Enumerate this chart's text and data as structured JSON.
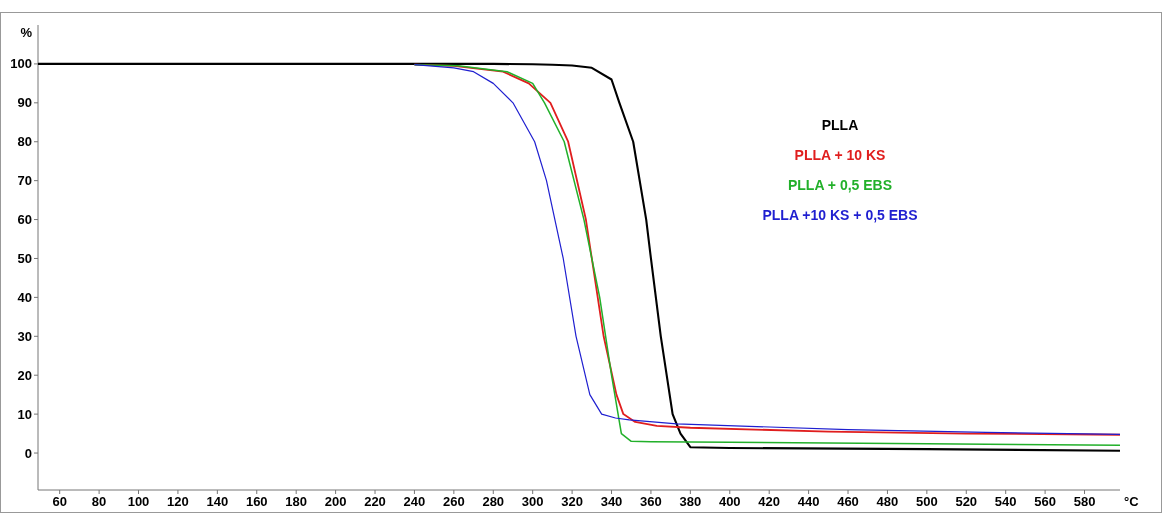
{
  "chart_data": {
    "type": "line",
    "xlabel": "°C",
    "ylabel": "%",
    "xlim": [
      49,
      598
    ],
    "ylim": [
      -9.5,
      110
    ],
    "xticks": [
      60,
      80,
      100,
      120,
      140,
      160,
      180,
      200,
      220,
      240,
      260,
      280,
      300,
      320,
      340,
      360,
      380,
      400,
      420,
      440,
      460,
      480,
      500,
      520,
      540,
      560,
      580
    ],
    "yticks": [
      0,
      10,
      20,
      30,
      40,
      50,
      60,
      70,
      80,
      90,
      100
    ],
    "grid": false,
    "legend": "right",
    "line_style": "solid",
    "marker": "none",
    "series": [
      {
        "name": "PLLA",
        "color": "#000000",
        "x": [
          49,
          200,
          280,
          300,
          310,
          320,
          330,
          340,
          344,
          351,
          357.6,
          360,
          365,
          371,
          375,
          380,
          400,
          500,
          598
        ],
        "values": [
          100,
          100,
          100,
          99.9,
          99.8,
          99.6,
          99,
          96,
          90,
          80,
          60,
          50,
          30,
          10,
          5,
          1.5,
          1.3,
          1,
          0.6
        ]
      },
      {
        "name": "PLLA + 10 KS",
        "color": "#e01e1e",
        "x": [
          240,
          260,
          285,
          298,
          309,
          318,
          327,
          330,
          336,
          342.5,
          346,
          352,
          363,
          380,
          450,
          520,
          598
        ],
        "values": [
          99.8,
          99.5,
          98,
          95,
          90,
          80,
          60,
          50,
          30,
          15,
          10,
          8,
          7,
          6.5,
          5.5,
          5,
          4.7
        ]
      },
      {
        "name": "PLLA + 0,5 EBS",
        "color": "#22b02a",
        "x": [
          240,
          262,
          287,
          300,
          306,
          316,
          326,
          334,
          340,
          345,
          350,
          360,
          400,
          500,
          598
        ],
        "values": [
          99.8,
          99.5,
          98,
          95,
          90,
          80,
          60,
          40,
          20,
          5,
          3,
          2.9,
          2.8,
          2.4,
          2.0
        ]
      },
      {
        "name": "PLLA +10 KS + 0,5 EBS",
        "color": "#1f1fd0",
        "x": [
          240,
          260,
          270,
          280,
          290,
          301,
          307,
          315.5,
          322,
          329,
          335,
          342,
          349,
          373,
          460,
          530,
          598
        ],
        "values": [
          99.8,
          99,
          98,
          95,
          90,
          80,
          70,
          50,
          30,
          15,
          10,
          9,
          8.5,
          7.5,
          6,
          5.3,
          4.8
        ]
      }
    ]
  }
}
